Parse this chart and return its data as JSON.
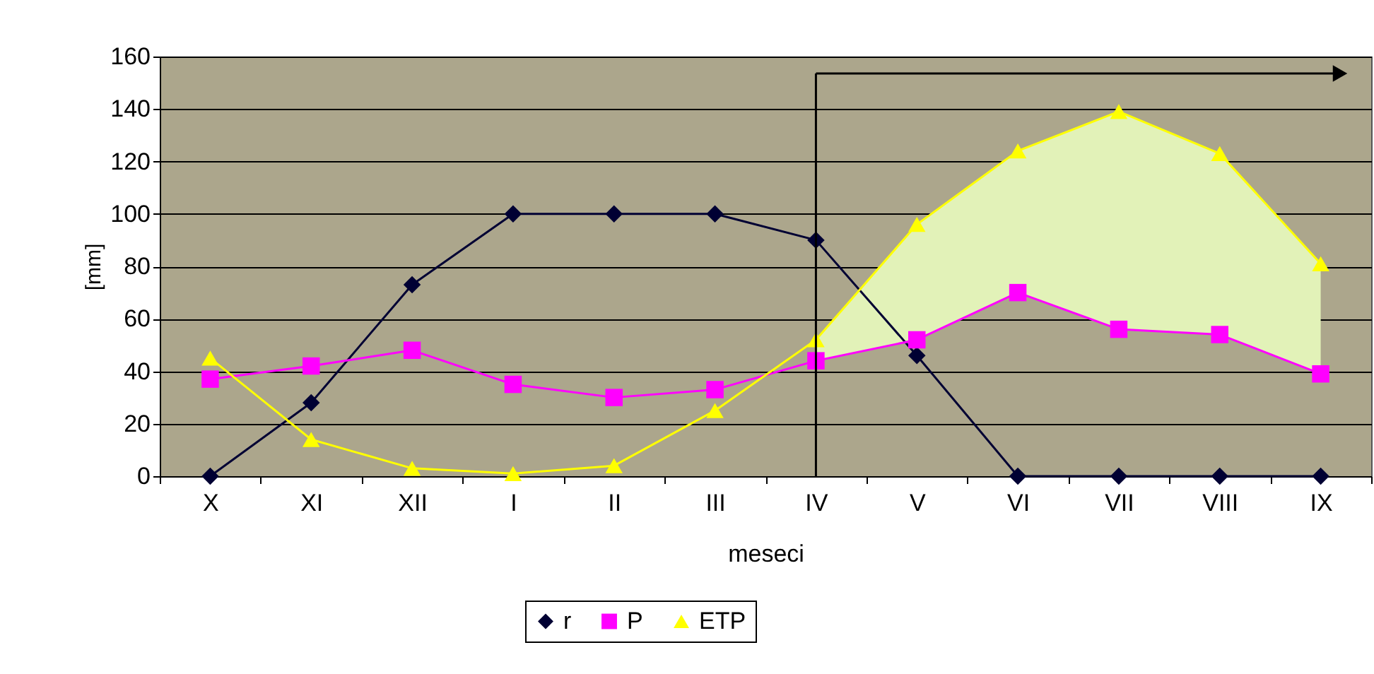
{
  "chart_data": {
    "type": "line",
    "xlabel": "meseci",
    "ylabel": "[mm]",
    "categories": [
      "X",
      "XI",
      "XII",
      "I",
      "II",
      "III",
      "IV",
      "V",
      "VI",
      "VII",
      "VIII",
      "IX"
    ],
    "series": [
      {
        "name": "r",
        "color": "#000033",
        "marker": "diamond",
        "values": [
          0,
          28,
          73,
          100,
          100,
          100,
          90,
          46,
          0,
          0,
          0,
          0
        ]
      },
      {
        "name": "P",
        "color": "#ff00ff",
        "marker": "square",
        "values": [
          37,
          42,
          48,
          35,
          30,
          33,
          44,
          52,
          70,
          56,
          54,
          39
        ]
      },
      {
        "name": "ETP",
        "color": "#ffff00",
        "marker": "triangle",
        "values": [
          45,
          14,
          3,
          1,
          4,
          25,
          52,
          96,
          124,
          139,
          123,
          81
        ],
        "lower": [
          null,
          null,
          null,
          null,
          null,
          null,
          44,
          52,
          70,
          56,
          54,
          39
        ],
        "upper": [
          null,
          null,
          null,
          null,
          null,
          null,
          52,
          96,
          124,
          139,
          123,
          81
        ]
      }
    ],
    "ylim": [
      0,
      160
    ],
    "yticks": [
      0,
      20,
      40,
      60,
      80,
      100,
      120,
      140,
      160
    ],
    "grid": "y",
    "legend": "bottom",
    "ref_lines": [
      {
        "axis": "x",
        "value": "IV",
        "color": "#000000"
      }
    ]
  }
}
